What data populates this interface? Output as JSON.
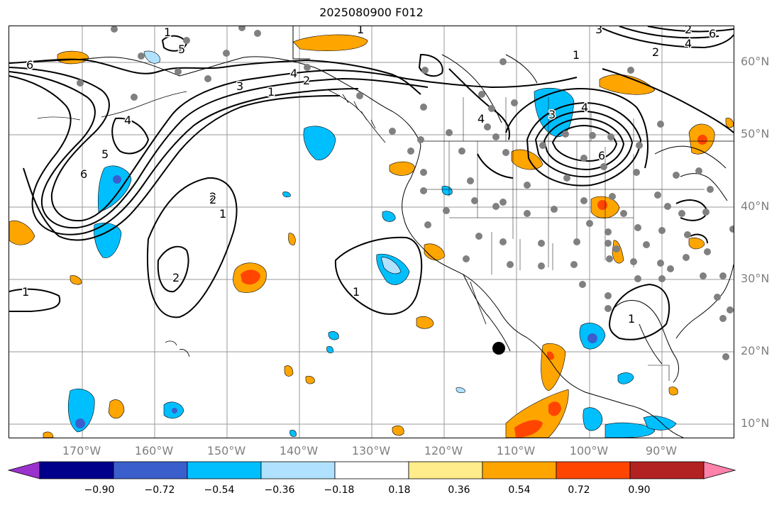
{
  "title": "2025080900 F012",
  "map": {
    "lat_labels": [
      "60°N",
      "50°N",
      "40°N",
      "30°N",
      "20°N",
      "10°N"
    ],
    "lon_labels": [
      "170°W",
      "160°W",
      "150°W",
      "140°W",
      "130°W",
      "120°W",
      "110°W",
      "100°W",
      "90°W"
    ],
    "contour_labels": [
      "6",
      "5",
      "1",
      "4",
      "3",
      "1",
      "4",
      "2",
      "6",
      "5",
      "4",
      "6",
      "1",
      "2",
      "3",
      "4",
      "1",
      "2",
      "6",
      "3",
      "4",
      "2",
      "2",
      "2",
      "1",
      "1",
      "1",
      "1"
    ],
    "colors": {
      "land_line": "#000000",
      "grid": "#999999",
      "station": "#808080",
      "contour": "#000000"
    },
    "storm_marker": {
      "lat": 20.5,
      "lon": -112
    }
  },
  "colorbar": {
    "tick_labels": [
      "−0.90",
      "−0.72",
      "−0.54",
      "−0.36",
      "−0.18",
      "0.18",
      "0.36",
      "0.54",
      "0.72",
      "0.90"
    ],
    "colors": [
      "#9a32cd",
      "#00008b",
      "#3a5fcd",
      "#00bfff",
      "#b0e2ff",
      "#ffffff",
      "#ffec8b",
      "#ffa500",
      "#ff4500",
      "#b22222",
      "#ff82ab"
    ]
  }
}
